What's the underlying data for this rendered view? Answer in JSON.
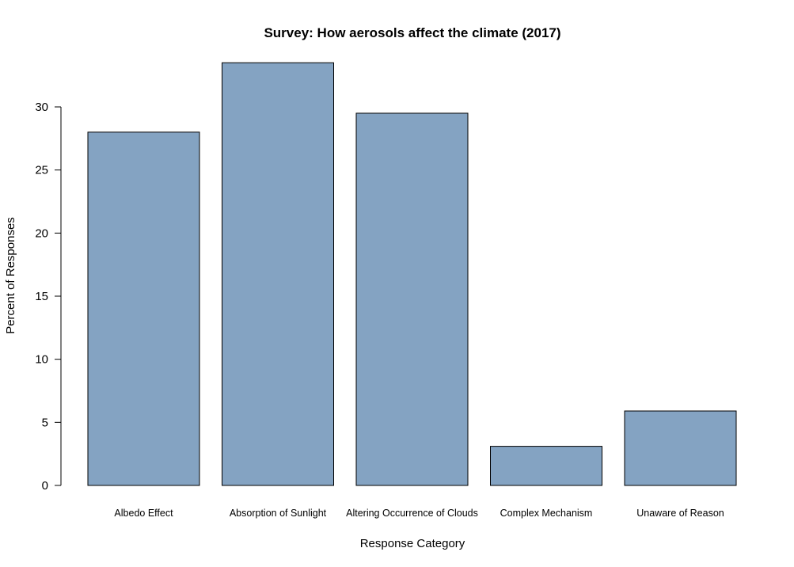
{
  "chart_data": {
    "type": "bar",
    "title": "Survey: How aerosols affect the climate (2017)",
    "xlabel": "Response Category",
    "ylabel": "Percent of Responses",
    "categories": [
      "Albedo Effect",
      "Absorption of Sunlight",
      "Altering Occurrence of Clouds",
      "Complex Mechanism",
      "Unaware of Reason"
    ],
    "values": [
      28.0,
      33.5,
      29.5,
      3.1,
      5.9
    ],
    "yticks": [
      0,
      5,
      10,
      15,
      20,
      25,
      30
    ],
    "ylim": [
      0,
      33.5
    ],
    "grid": false,
    "legend": "none",
    "colors": {
      "bar_fill": "#84a3c2",
      "bar_stroke": "#000000",
      "axis": "#000000",
      "background": "#ffffff"
    }
  }
}
